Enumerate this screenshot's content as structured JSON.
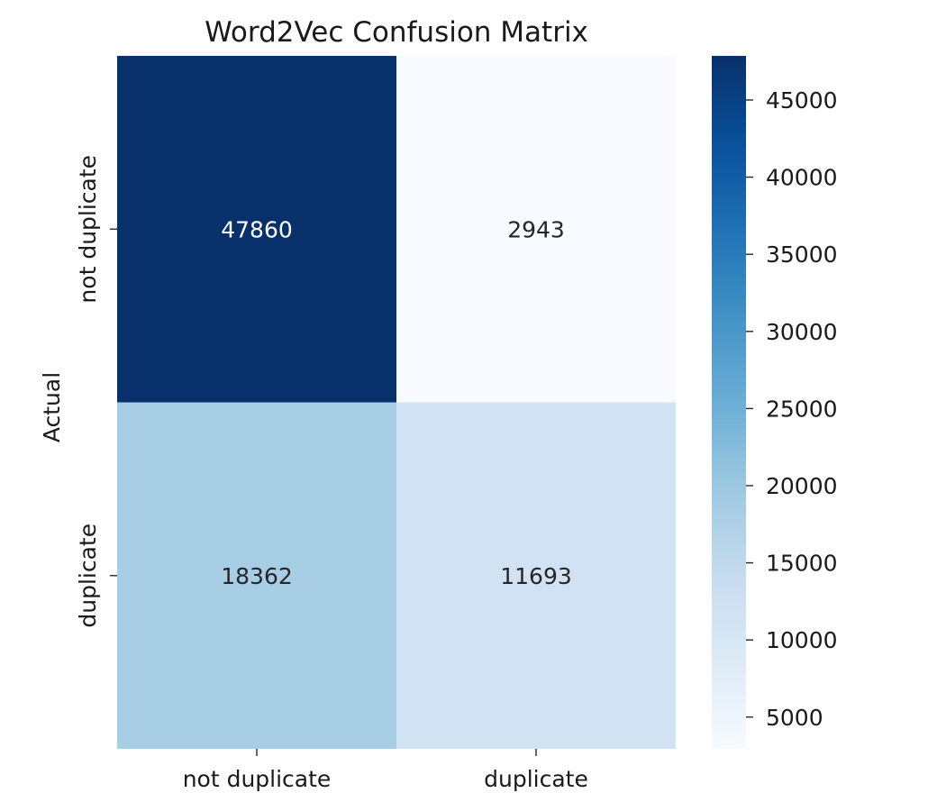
{
  "chart_data": {
    "type": "heatmap",
    "title": "Word2Vec Confusion Matrix",
    "xlabel": "",
    "ylabel": "Actual",
    "row_labels": [
      "not duplicate",
      "duplicate"
    ],
    "col_labels": [
      "not duplicate",
      "duplicate"
    ],
    "values": [
      [
        47860,
        2943
      ],
      [
        18362,
        11693
      ]
    ],
    "cell_labels": [
      [
        "47860",
        "2943"
      ],
      [
        "18362",
        "11693"
      ]
    ],
    "colormap": "Blues",
    "vmin": 2943,
    "vmax": 47860,
    "colorbar": {
      "ticks": [
        45000,
        40000,
        35000,
        30000,
        25000,
        20000,
        15000,
        10000,
        5000
      ],
      "tick_labels": [
        "45000",
        "40000",
        "35000",
        "30000",
        "25000",
        "20000",
        "15000",
        "10000",
        "5000"
      ]
    },
    "colors": {
      "min": "#f7fbff",
      "max": "#08306b",
      "text_dark": "#262626",
      "text_light": "#ffffff"
    }
  }
}
